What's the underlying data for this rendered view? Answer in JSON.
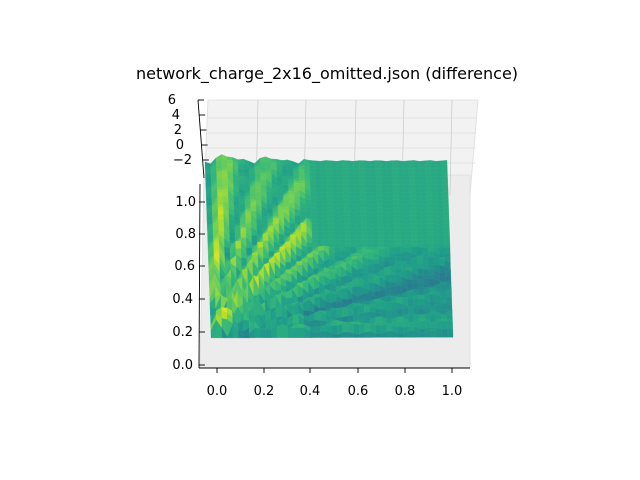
{
  "chart_data": {
    "type": "surface3d",
    "title": "network_charge_2x16_omitted.json (difference)",
    "colormap": "viridis",
    "x_ticks": [
      "0.0",
      "0.2",
      "0.4",
      "0.6",
      "0.8",
      "1.0"
    ],
    "y_ticks": [
      "0.0",
      "0.2",
      "0.4",
      "0.6",
      "0.8",
      "1.0"
    ],
    "z_ticks": [
      "6",
      "4",
      "2",
      "0",
      "−2"
    ],
    "xlim": [
      0,
      1
    ],
    "ylim": [
      0,
      1
    ],
    "zlim": [
      -3,
      6
    ],
    "grid": true,
    "view": "nearly top-down, oblique",
    "surface": {
      "description": "difference field: flat plateau region with fan of ridges radiating from the origin corner",
      "fan_origin": [
        0.0,
        0.0
      ],
      "ridge_count": 9,
      "ridge_angles_deg": [
        85,
        75,
        65,
        55,
        45,
        35,
        25,
        15,
        5
      ],
      "ridge_peak_values": [
        5.0,
        4.0,
        4.5,
        5.2,
        3.5,
        2.8,
        2.2,
        2.0,
        1.8
      ],
      "plateau_value": 1.0,
      "trough_value": -2.5
    }
  }
}
